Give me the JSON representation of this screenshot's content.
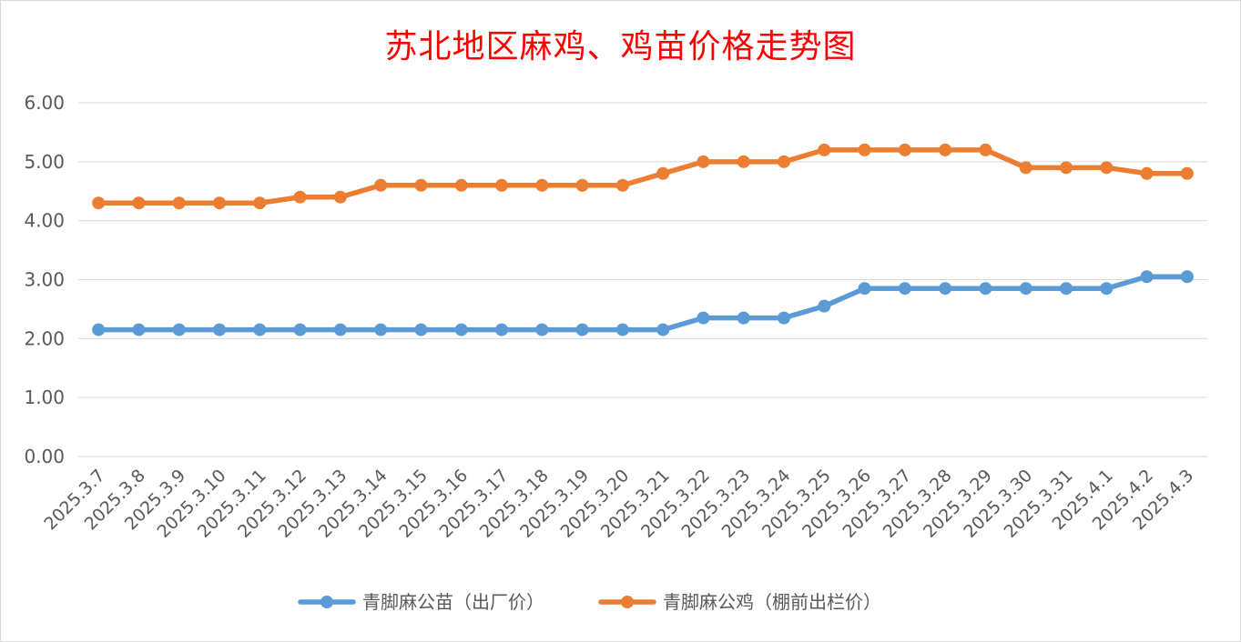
{
  "chart_data": {
    "type": "line",
    "title": "苏北地区麻鸡、鸡苗价格走势图",
    "xlabel": "",
    "ylabel": "",
    "ylim": [
      0,
      6
    ],
    "yticks": [
      "0.00",
      "1.00",
      "2.00",
      "3.00",
      "4.00",
      "5.00",
      "6.00"
    ],
    "grid": true,
    "legend_position": "bottom",
    "categories": [
      "2025.3.7",
      "2025.3.8",
      "2025.3.9",
      "2025.3.10",
      "2025.3.11",
      "2025.3.12",
      "2025.3.13",
      "2025.3.14",
      "2025.3.15",
      "2025.3.16",
      "2025.3.17",
      "2025.3.18",
      "2025.3.19",
      "2025.3.20",
      "2025.3.21",
      "2025.3.22",
      "2025.3.23",
      "2025.3.24",
      "2025.3.25",
      "2025.3.26",
      "2025.3.27",
      "2025.3.28",
      "2025.3.29",
      "2025.3.30",
      "2025.3.31",
      "2025.4.1",
      "2025.4.2",
      "2025.4.3"
    ],
    "series": [
      {
        "name": "青脚麻公苗（出厂价）",
        "color": "#5b9bd5",
        "values": [
          2.15,
          2.15,
          2.15,
          2.15,
          2.15,
          2.15,
          2.15,
          2.15,
          2.15,
          2.15,
          2.15,
          2.15,
          2.15,
          2.15,
          2.15,
          2.35,
          2.35,
          2.35,
          2.55,
          2.85,
          2.85,
          2.85,
          2.85,
          2.85,
          2.85,
          2.85,
          3.05,
          3.05
        ]
      },
      {
        "name": "青脚麻公鸡（棚前出栏价）",
        "color": "#ed7d31",
        "values": [
          4.3,
          4.3,
          4.3,
          4.3,
          4.3,
          4.4,
          4.4,
          4.6,
          4.6,
          4.6,
          4.6,
          4.6,
          4.6,
          4.6,
          4.8,
          5.0,
          5.0,
          5.0,
          5.2,
          5.2,
          5.2,
          5.2,
          5.2,
          4.9,
          4.9,
          4.9,
          4.8,
          4.8
        ]
      }
    ]
  }
}
